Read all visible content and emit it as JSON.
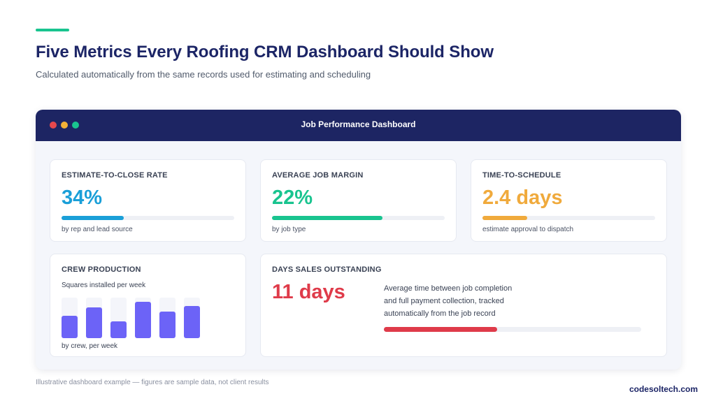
{
  "header": {
    "title": "Five Metrics Every Roofing CRM Dashboard Should Show",
    "subtitle": "Calculated automatically from the same records used for estimating and scheduling"
  },
  "window": {
    "title": "Job Performance Dashboard",
    "controls": [
      "close-dot",
      "minimize-dot",
      "maximize-dot"
    ]
  },
  "metrics": [
    {
      "label": "ESTIMATE-TO-CLOSE RATE",
      "value": "34%",
      "caption": "by rep and lead source",
      "progress": 0.36,
      "color": "#1a9fd8"
    },
    {
      "label": "AVERAGE JOB MARGIN",
      "value": "22%",
      "caption": "by job type",
      "progress": 0.64,
      "color": "#19c48f"
    },
    {
      "label": "TIME-TO-SCHEDULE",
      "value": "2.4 days",
      "caption": "estimate approval to dispatch",
      "progress": 0.26,
      "color": "#f0aa3c"
    }
  ],
  "crew": {
    "label": "CREW PRODUCTION",
    "subtitle": "Squares installed per week",
    "caption": "by crew, per week",
    "bar_levels": [
      0.55,
      0.76,
      0.41,
      0.9,
      0.66,
      0.79
    ],
    "bar_color": "#6c63f7"
  },
  "dso": {
    "label": "DAYS SALES OUTSTANDING",
    "value": "11 days",
    "description": "Average time between job completion and full payment collection, tracked automatically from the job record",
    "progress": 0.44,
    "color": "#df3b4a"
  },
  "footer": {
    "note": "Illustrative dashboard example — figures are sample data, not client results",
    "brand": "codesoltech.com"
  }
}
